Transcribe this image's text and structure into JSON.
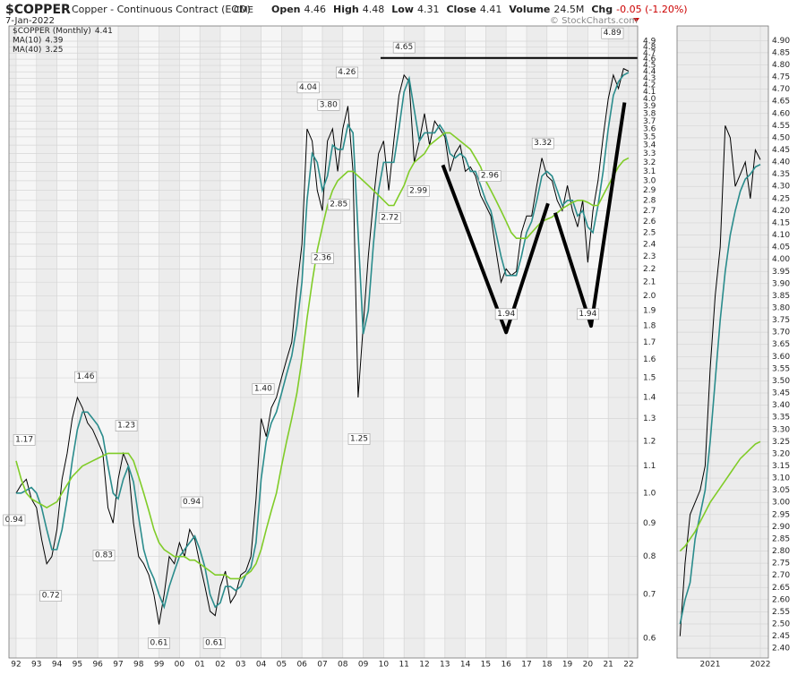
{
  "header": {
    "symbol": "$COPPER",
    "name": "Copper - Continuous Contract (EOD)",
    "exchange": "CME",
    "date": "7-Jan-2022",
    "quote": [
      {
        "label": "Open",
        "value": 4.46
      },
      {
        "label": "High",
        "value": 4.48
      },
      {
        "label": "Low",
        "value": 4.31
      },
      {
        "label": "Close",
        "value": 4.41
      },
      {
        "label": "Volume",
        "value": "24.5M"
      },
      {
        "label": "Chg",
        "value": "-0.05 (-1.20%)",
        "color": "#cc0000"
      }
    ],
    "credit": "© StockCharts.com"
  },
  "chart_data": [
    {
      "type": "line",
      "log_scale": true,
      "grid": true,
      "xlim": [
        1991.65,
        2022.44
      ],
      "ylim": [
        0.56,
        5.17
      ],
      "xticks": [
        {
          "value": 1992,
          "label": "92"
        },
        {
          "value": 1993,
          "label": "93"
        },
        {
          "value": 1994,
          "label": "94"
        },
        {
          "value": 1995,
          "label": "95"
        },
        {
          "value": 1996,
          "label": "96"
        },
        {
          "value": 1997,
          "label": "97"
        },
        {
          "value": 1998,
          "label": "98"
        },
        {
          "value": 1999,
          "label": "99"
        },
        {
          "value": 2000,
          "label": "00"
        },
        {
          "value": 2001,
          "label": "01"
        },
        {
          "value": 2002,
          "label": "02"
        },
        {
          "value": 2003,
          "label": "03"
        },
        {
          "value": 2004,
          "label": "04"
        },
        {
          "value": 2005,
          "label": "05"
        },
        {
          "value": 2006,
          "label": "06"
        },
        {
          "value": 2007,
          "label": "07"
        },
        {
          "value": 2008,
          "label": "08"
        },
        {
          "value": 2009,
          "label": "09"
        },
        {
          "value": 2010,
          "label": "10"
        },
        {
          "value": 2011,
          "label": "11"
        },
        {
          "value": 2012,
          "label": "12"
        },
        {
          "value": 2013,
          "label": "13"
        },
        {
          "value": 2014,
          "label": "14"
        },
        {
          "value": 2015,
          "label": "15"
        },
        {
          "value": 2016,
          "label": "16"
        },
        {
          "value": 2017,
          "label": "17"
        },
        {
          "value": 2018,
          "label": "18"
        },
        {
          "value": 2019,
          "label": "19"
        },
        {
          "value": 2020,
          "label": "20"
        },
        {
          "value": 2021,
          "label": "21"
        },
        {
          "value": 2022,
          "label": "22"
        }
      ],
      "yticks": [
        0.6,
        0.7,
        0.8,
        0.9,
        {
          "value": 1,
          "label": "1.0"
        },
        1.1,
        1.2,
        1.3,
        1.4,
        1.5,
        1.6,
        1.7,
        1.8,
        1.9,
        {
          "value": 2,
          "label": "2.0"
        },
        2.1,
        2.2,
        2.3,
        2.4,
        2.5,
        2.6,
        2.7,
        2.8,
        2.9,
        {
          "value": 3,
          "label": "3.0"
        },
        3.1,
        3.2,
        3.3,
        3.4,
        3.5,
        3.6,
        3.7,
        3.8,
        3.9,
        {
          "value": 4,
          "label": "4.0"
        },
        4.1,
        4.2,
        4.3,
        4.4,
        4.5,
        4.6,
        4.7,
        4.8,
        4.9
      ],
      "x": [
        1992,
        1992.25,
        1992.5,
        1992.75,
        1993,
        1993.25,
        1993.5,
        1993.75,
        1994,
        1994.25,
        1994.5,
        1994.75,
        1995,
        1995.25,
        1995.5,
        1995.75,
        1996,
        1996.25,
        1996.5,
        1996.75,
        1997,
        1997.25,
        1997.5,
        1997.75,
        1998,
        1998.25,
        1998.5,
        1998.75,
        1999,
        1999.25,
        1999.5,
        1999.75,
        2000,
        2000.25,
        2000.5,
        2000.75,
        2001,
        2001.25,
        2001.5,
        2001.75,
        2002,
        2002.25,
        2002.5,
        2002.75,
        2003,
        2003.25,
        2003.5,
        2003.75,
        2004,
        2004.25,
        2004.5,
        2004.75,
        2005,
        2005.25,
        2005.5,
        2005.75,
        2006,
        2006.25,
        2006.5,
        2006.75,
        2007,
        2007.25,
        2007.5,
        2007.75,
        2008,
        2008.25,
        2008.5,
        2008.75,
        2009,
        2009.25,
        2009.5,
        2009.75,
        2010,
        2010.25,
        2010.5,
        2010.75,
        2011,
        2011.25,
        2011.5,
        2011.75,
        2012,
        2012.25,
        2012.5,
        2012.75,
        2013,
        2013.25,
        2013.5,
        2013.75,
        2014,
        2014.25,
        2014.5,
        2014.75,
        2015,
        2015.25,
        2015.5,
        2015.75,
        2016,
        2016.25,
        2016.5,
        2016.75,
        2017,
        2017.25,
        2017.5,
        2017.75,
        2018,
        2018.25,
        2018.5,
        2018.75,
        2019,
        2019.25,
        2019.5,
        2019.75,
        2020,
        2020.25,
        2020.5,
        2020.75,
        2021,
        2021.25,
        2021.5,
        2021.75,
        2022
      ],
      "series": [
        {
          "name": "$COPPER (Monthly)",
          "last": 4.41,
          "color": "#000000",
          "width": 1,
          "values": [
            1.0,
            1.03,
            1.05,
            0.98,
            0.95,
            0.85,
            0.78,
            0.8,
            0.88,
            1.05,
            1.15,
            1.3,
            1.4,
            1.35,
            1.28,
            1.25,
            1.2,
            1.15,
            0.95,
            0.9,
            1.05,
            1.15,
            1.1,
            0.9,
            0.8,
            0.78,
            0.75,
            0.7,
            0.63,
            0.7,
            0.8,
            0.78,
            0.84,
            0.8,
            0.88,
            0.85,
            0.78,
            0.72,
            0.66,
            0.65,
            0.72,
            0.76,
            0.68,
            0.7,
            0.75,
            0.76,
            0.8,
            0.98,
            1.3,
            1.22,
            1.35,
            1.4,
            1.5,
            1.6,
            1.7,
            2.05,
            2.4,
            3.6,
            3.45,
            2.9,
            2.7,
            3.45,
            3.6,
            3.1,
            3.6,
            3.9,
            3.1,
            1.4,
            1.8,
            2.3,
            2.8,
            3.3,
            3.45,
            2.9,
            3.45,
            4.05,
            4.35,
            4.25,
            3.2,
            3.45,
            3.8,
            3.4,
            3.7,
            3.6,
            3.5,
            3.1,
            3.3,
            3.4,
            3.1,
            3.15,
            3.05,
            2.85,
            2.75,
            2.65,
            2.35,
            2.1,
            2.2,
            2.15,
            2.18,
            2.5,
            2.65,
            2.65,
            2.95,
            3.25,
            3.05,
            3.0,
            2.8,
            2.7,
            2.95,
            2.7,
            2.55,
            2.8,
            2.25,
            2.7,
            3.0,
            3.5,
            4.0,
            4.35,
            4.15,
            4.45,
            4.41
          ]
        },
        {
          "name": "MA(10)",
          "last": 4.39,
          "color": "#2a8c8c",
          "width": 1.6,
          "values": [
            1.0,
            1.0,
            1.01,
            1.02,
            1.0,
            0.95,
            0.88,
            0.82,
            0.82,
            0.88,
            0.98,
            1.12,
            1.25,
            1.33,
            1.33,
            1.3,
            1.27,
            1.22,
            1.1,
            1.0,
            0.98,
            1.05,
            1.1,
            1.04,
            0.92,
            0.82,
            0.77,
            0.74,
            0.7,
            0.67,
            0.72,
            0.76,
            0.8,
            0.82,
            0.84,
            0.86,
            0.82,
            0.77,
            0.7,
            0.67,
            0.68,
            0.72,
            0.72,
            0.71,
            0.72,
            0.75,
            0.77,
            0.84,
            1.05,
            1.2,
            1.28,
            1.33,
            1.42,
            1.52,
            1.62,
            1.8,
            2.1,
            2.8,
            3.3,
            3.2,
            2.9,
            3.05,
            3.4,
            3.35,
            3.35,
            3.65,
            3.55,
            2.5,
            1.75,
            1.9,
            2.4,
            2.9,
            3.2,
            3.2,
            3.2,
            3.6,
            4.1,
            4.3,
            3.85,
            3.45,
            3.55,
            3.55,
            3.55,
            3.65,
            3.55,
            3.3,
            3.25,
            3.3,
            3.25,
            3.1,
            3.1,
            2.95,
            2.8,
            2.7,
            2.5,
            2.3,
            2.15,
            2.15,
            2.15,
            2.3,
            2.5,
            2.6,
            2.8,
            3.05,
            3.1,
            3.05,
            2.9,
            2.75,
            2.8,
            2.8,
            2.65,
            2.7,
            2.55,
            2.5,
            2.75,
            3.1,
            3.6,
            4.05,
            4.25,
            4.35,
            4.39
          ]
        },
        {
          "name": "MA(40)",
          "last": 3.25,
          "color": "#80cc28",
          "width": 1.6,
          "values": [
            1.12,
            1.05,
            1.0,
            0.98,
            0.97,
            0.96,
            0.95,
            0.96,
            0.97,
            1.0,
            1.03,
            1.06,
            1.08,
            1.1,
            1.11,
            1.12,
            1.13,
            1.14,
            1.15,
            1.15,
            1.15,
            1.15,
            1.15,
            1.12,
            1.06,
            1.0,
            0.94,
            0.88,
            0.84,
            0.82,
            0.81,
            0.8,
            0.8,
            0.8,
            0.79,
            0.79,
            0.78,
            0.77,
            0.76,
            0.75,
            0.75,
            0.75,
            0.74,
            0.74,
            0.74,
            0.75,
            0.76,
            0.78,
            0.82,
            0.88,
            0.94,
            1.0,
            1.1,
            1.2,
            1.3,
            1.42,
            1.6,
            1.85,
            2.1,
            2.35,
            2.55,
            2.75,
            2.9,
            3.0,
            3.05,
            3.1,
            3.1,
            3.05,
            3.0,
            2.95,
            2.9,
            2.85,
            2.8,
            2.75,
            2.75,
            2.85,
            2.95,
            3.1,
            3.2,
            3.25,
            3.3,
            3.4,
            3.45,
            3.5,
            3.55,
            3.55,
            3.5,
            3.45,
            3.4,
            3.35,
            3.25,
            3.15,
            3.0,
            2.9,
            2.8,
            2.7,
            2.6,
            2.5,
            2.45,
            2.45,
            2.45,
            2.5,
            2.55,
            2.6,
            2.62,
            2.64,
            2.68,
            2.72,
            2.75,
            2.78,
            2.8,
            2.8,
            2.78,
            2.75,
            2.75,
            2.85,
            2.95,
            3.05,
            3.15,
            3.22,
            3.25
          ]
        }
      ],
      "peak_labels": [
        {
          "x": 1992.4,
          "value": 1.17
        },
        {
          "x": 1995.4,
          "value": 1.46
        },
        {
          "x": 1997.4,
          "value": 1.23
        },
        {
          "x": 2000.6,
          "value": 0.94
        },
        {
          "x": 2004.1,
          "value": 1.4,
          "label": "1.40"
        },
        {
          "x": 2006.3,
          "value": 4.04
        },
        {
          "x": 2007.3,
          "value": 3.8,
          "label": "3.80"
        },
        {
          "x": 2008.2,
          "value": 4.26
        },
        {
          "x": 2011.0,
          "value": 4.65
        },
        {
          "x": 2015.2,
          "value": 2.96
        },
        {
          "x": 2017.8,
          "value": 3.32
        },
        {
          "x": 2021.2,
          "value": 4.89
        }
      ],
      "trough_labels": [
        {
          "x": 1991.9,
          "value": 0.94
        },
        {
          "x": 1993.7,
          "value": 0.72
        },
        {
          "x": 1996.3,
          "value": 0.83
        },
        {
          "x": 1999.0,
          "value": 0.61
        },
        {
          "x": 2001.7,
          "value": 0.61
        },
        {
          "x": 2007.0,
          "value": 2.36
        },
        {
          "x": 2007.8,
          "value": 2.85
        },
        {
          "x": 2008.8,
          "value": 1.25
        },
        {
          "x": 2010.3,
          "value": 2.72
        },
        {
          "x": 2011.7,
          "value": 2.99
        },
        {
          "x": 2016.0,
          "value": 1.94
        },
        {
          "x": 2020.0,
          "value": 1.94
        }
      ],
      "resistance": {
        "x": [
          2009.85,
          2022.44
        ],
        "values": [
          4.62,
          4.62
        ]
      },
      "trendlines": [
        {
          "x": [
            2012.9,
            2016.0,
            2018.05
          ],
          "values": [
            3.17,
            1.76,
            2.77
          ]
        },
        {
          "x": [
            2018.4,
            2020.16,
            2021.8
          ],
          "values": [
            2.68,
            1.8,
            3.95
          ]
        }
      ]
    },
    {
      "type": "line",
      "log_scale": false,
      "grid": true,
      "xlim": [
        2020.34,
        2022.16
      ],
      "ylim": [
        2.36,
        4.96
      ],
      "xticks": [
        2021,
        2022
      ],
      "yticks": [
        {
          "value": 2.4,
          "label": "2.40"
        },
        2.45,
        {
          "value": 2.5,
          "label": "2.50"
        },
        2.55,
        {
          "value": 2.6,
          "label": "2.60"
        },
        2.65,
        {
          "value": 2.7,
          "label": "2.70"
        },
        2.75,
        {
          "value": 2.8,
          "label": "2.80"
        },
        2.85,
        {
          "value": 2.9,
          "label": "2.90"
        },
        2.95,
        {
          "value": 3,
          "label": "3.00"
        },
        3.05,
        {
          "value": 3.1,
          "label": "3.10"
        },
        3.15,
        {
          "value": 3.2,
          "label": "3.20"
        },
        3.25,
        {
          "value": 3.3,
          "label": "3.30"
        },
        3.35,
        {
          "value": 3.4,
          "label": "3.40"
        },
        3.45,
        {
          "value": 3.5,
          "label": "3.50"
        },
        3.55,
        {
          "value": 3.6,
          "label": "3.60"
        },
        3.65,
        {
          "value": 3.7,
          "label": "3.70"
        },
        3.75,
        {
          "value": 3.8,
          "label": "3.80"
        },
        3.85,
        {
          "value": 3.9,
          "label": "3.90"
        },
        3.95,
        {
          "value": 4,
          "label": "4.00"
        },
        4.05,
        {
          "value": 4.1,
          "label": "4.10"
        },
        4.15,
        {
          "value": 4.2,
          "label": "4.20"
        },
        4.25,
        {
          "value": 4.3,
          "label": "4.30"
        },
        4.35,
        {
          "value": 4.4,
          "label": "4.40"
        },
        4.45,
        {
          "value": 4.5,
          "label": "4.50"
        },
        4.55,
        {
          "value": 4.6,
          "label": "4.60"
        },
        4.65,
        {
          "value": 4.7,
          "label": "4.70"
        },
        4.75,
        {
          "value": 4.8,
          "label": "4.80"
        },
        4.85,
        {
          "value": 4.9,
          "label": "4.90"
        }
      ],
      "x": [
        2020.4,
        2020.5,
        2020.6,
        2020.7,
        2020.8,
        2020.9,
        2021.0,
        2021.1,
        2021.2,
        2021.3,
        2021.4,
        2021.5,
        2021.6,
        2021.7,
        2021.8,
        2021.9,
        2022.0
      ],
      "series": [
        {
          "color": "#000000",
          "width": 1,
          "values": [
            2.45,
            2.75,
            2.95,
            3.0,
            3.05,
            3.15,
            3.55,
            3.85,
            4.05,
            4.55,
            4.5,
            4.3,
            4.35,
            4.4,
            4.25,
            4.45,
            4.41
          ]
        },
        {
          "color": "#2a8c8c",
          "width": 1.6,
          "values": [
            2.5,
            2.6,
            2.67,
            2.85,
            2.95,
            3.05,
            3.25,
            3.5,
            3.75,
            3.95,
            4.1,
            4.2,
            4.28,
            4.33,
            4.35,
            4.38,
            4.39
          ]
        },
        {
          "color": "#80cc28",
          "width": 1.6,
          "values": [
            2.8,
            2.82,
            2.85,
            2.88,
            2.92,
            2.96,
            3.0,
            3.03,
            3.06,
            3.09,
            3.12,
            3.15,
            3.18,
            3.2,
            3.22,
            3.24,
            3.25
          ]
        }
      ]
    }
  ]
}
